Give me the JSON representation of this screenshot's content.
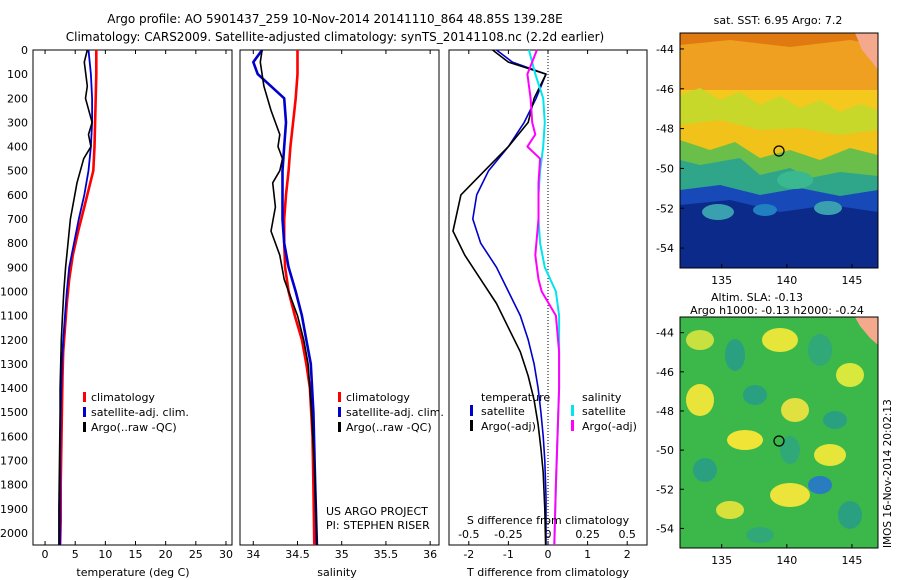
{
  "header": {
    "line1": "Argo profile: AO 5901437_259 10-Nov-2014 20141110_864 48.85S 139.28E",
    "line2": "Climatology: CARS2009. Satellite-adjusted climatology: synTS_20141108.nc (2.2d earlier)"
  },
  "colors": {
    "climatology": "#ff0000",
    "satellite": "#0000cc",
    "argo": "#000000",
    "satellite_salinity": "#00e5ee",
    "argo_salinity": "#ff00ff"
  },
  "depth_ticks": [
    "0",
    "100",
    "200",
    "300",
    "400",
    "500",
    "600",
    "700",
    "800",
    "900",
    "1000",
    "1100",
    "1200",
    "1300",
    "1400",
    "1500",
    "1600",
    "1700",
    "1800",
    "1900",
    "2000"
  ],
  "panels": {
    "temperature": {
      "xlabel": "temperature (deg C)",
      "xticks": [
        "0",
        "5",
        "10",
        "15",
        "20",
        "25",
        "30"
      ],
      "legend": [
        "climatology",
        "satellite-adj. clim.",
        "Argo(..raw -QC)"
      ]
    },
    "salinity": {
      "xlabel": "salinity",
      "xticks": [
        "34",
        "34.5",
        "35",
        "35.5",
        "36"
      ],
      "legend": [
        "climatology",
        "satellite-adj. clim.",
        "Argo(..raw -QC)"
      ],
      "note1": "US ARGO PROJECT",
      "note2": "PI: STEPHEN RISER"
    },
    "difference": {
      "xlabel": "T difference from climatology",
      "xticks": [
        "-2",
        "-1",
        "0",
        "1",
        "2"
      ],
      "top_label": "S difference from climatology",
      "s_ticks": [
        "-0.5",
        "-0.25",
        "0",
        "0.25",
        "0.5"
      ],
      "legend_t_title": "temperature",
      "legend_s_title": "salinity",
      "legend_t": [
        "satellite",
        "Argo(-adj)"
      ],
      "legend_s": [
        "satellite",
        "Argo(-adj)"
      ]
    },
    "map_sst": {
      "title": "sat. SST: 6.95 Argo: 7.2",
      "yticks": [
        "-44",
        "-46",
        "-48",
        "-50",
        "-52",
        "-54"
      ],
      "xticks": [
        "135",
        "140",
        "145"
      ]
    },
    "map_sla": {
      "title1": "Altim. SLA: -0.13",
      "title2": "Argo h1000: -0.13 h2000: -0.24",
      "yticks": [
        "-44",
        "-46",
        "-48",
        "-50",
        "-52",
        "-54"
      ],
      "xticks": [
        "135",
        "140",
        "145"
      ],
      "stamp": "IMOS 16-Nov-2014 20:02:13"
    }
  },
  "chart_data": [
    {
      "type": "line",
      "xlabel": "temperature (deg C)",
      "ylim": [
        2050,
        0
      ],
      "xlim": [
        -2,
        31
      ],
      "series": [
        {
          "name": "climatology",
          "x": [
            8.5,
            8.5,
            8.4,
            8.3,
            8.2,
            8.0,
            7.5,
            6.5,
            5.5,
            4.6,
            4.0,
            3.6,
            3.3,
            3.0,
            2.9,
            2.8,
            2.7,
            2.6,
            2.6,
            2.5
          ],
          "y": [
            0,
            100,
            200,
            300,
            400,
            500,
            550,
            650,
            750,
            850,
            950,
            1050,
            1150,
            1250,
            1350,
            1500,
            1650,
            1800,
            1950,
            2050
          ]
        },
        {
          "name": "satellite-adj. clim.",
          "x": [
            7.2,
            7.6,
            7.8,
            7.8,
            7.6,
            7.2,
            6.5,
            5.6,
            4.8,
            4.0,
            3.6,
            3.3,
            3.0,
            2.8,
            2.7,
            2.6,
            2.5,
            2.5,
            2.5
          ],
          "y": [
            0,
            100,
            200,
            300,
            400,
            500,
            600,
            700,
            800,
            900,
            1000,
            1100,
            1200,
            1300,
            1400,
            1500,
            1700,
            1900,
            2050
          ]
        },
        {
          "name": "Argo(..raw -QC)",
          "x": [
            7.0,
            6.5,
            7.0,
            6.7,
            7.8,
            7.2,
            7.6,
            6.4,
            5.3,
            4.2,
            3.8,
            3.4,
            3.1,
            2.9,
            2.7,
            2.6,
            2.5,
            2.5,
            2.4,
            2.3,
            2.3
          ],
          "y": [
            0,
            50,
            150,
            200,
            300,
            350,
            400,
            450,
            550,
            700,
            800,
            900,
            1000,
            1100,
            1200,
            1300,
            1400,
            1500,
            1700,
            1900,
            2050
          ]
        }
      ]
    },
    {
      "type": "line",
      "xlabel": "salinity",
      "ylim": [
        2050,
        0
      ],
      "xlim": [
        33.85,
        36.1
      ],
      "series": [
        {
          "name": "climatology",
          "x": [
            34.5,
            34.5,
            34.48,
            34.45,
            34.42,
            34.4,
            34.37,
            34.35,
            34.35,
            34.36,
            34.4,
            34.47,
            34.55,
            34.6,
            34.64,
            34.67,
            34.68,
            34.69
          ],
          "y": [
            0,
            100,
            200,
            300,
            400,
            500,
            600,
            700,
            800,
            900,
            1000,
            1100,
            1200,
            1300,
            1400,
            1600,
            1800,
            2050
          ]
        },
        {
          "name": "satellite-adj. clim.",
          "x": [
            34.1,
            34.0,
            34.05,
            34.35,
            34.37,
            34.35,
            34.33,
            34.33,
            34.33,
            34.35,
            34.4,
            34.48,
            34.55,
            34.6,
            34.65,
            34.68,
            34.7,
            34.72
          ],
          "y": [
            0,
            50,
            100,
            200,
            300,
            400,
            500,
            600,
            700,
            800,
            900,
            1000,
            1100,
            1200,
            1300,
            1500,
            1800,
            2050
          ]
        },
        {
          "name": "Argo(..raw -QC)",
          "x": [
            34.1,
            34.08,
            34.12,
            34.2,
            34.3,
            34.28,
            34.33,
            34.3,
            34.22,
            34.25,
            34.2,
            34.3,
            34.35,
            34.4,
            34.5,
            34.57,
            34.62,
            34.66,
            34.7,
            34.72
          ],
          "y": [
            0,
            50,
            150,
            250,
            350,
            400,
            450,
            500,
            550,
            650,
            750,
            850,
            950,
            1000,
            1100,
            1200,
            1300,
            1500,
            1800,
            2050
          ]
        }
      ]
    },
    {
      "type": "line",
      "xlabel": "T difference from climatology",
      "top_label": "S difference from climatology",
      "ylim": [
        2050,
        0
      ],
      "xlim": [
        -2.5,
        2.5
      ],
      "s_xlim": [
        -0.625,
        0.625
      ],
      "series": [
        {
          "name": "temperature satellite",
          "x": [
            -1.3,
            -0.9,
            -0.05,
            -0.3,
            -0.6,
            -1.0,
            -1.5,
            -1.8,
            -1.9,
            -1.7,
            -1.3,
            -1.0,
            -0.7,
            -0.5,
            -0.35,
            -0.25,
            -0.18,
            -0.12,
            -0.08,
            -0.05,
            -0.05
          ],
          "y": [
            0,
            50,
            100,
            200,
            300,
            400,
            500,
            600,
            700,
            800,
            900,
            1000,
            1100,
            1200,
            1300,
            1400,
            1500,
            1600,
            1700,
            1850,
            2050
          ]
        },
        {
          "name": "temperature Argo(-adj)",
          "x": [
            -1.4,
            -1.0,
            -0.05,
            -0.35,
            -0.5,
            -1.0,
            -1.6,
            -2.2,
            -2.4,
            -2.1,
            -1.7,
            -1.3,
            -1.0,
            -0.7,
            -0.5,
            -0.35,
            -0.25,
            -0.18,
            -0.12,
            -0.08,
            -0.06
          ],
          "y": [
            0,
            50,
            100,
            200,
            300,
            400,
            500,
            600,
            750,
            850,
            950,
            1050,
            1150,
            1250,
            1350,
            1450,
            1550,
            1650,
            1750,
            1900,
            2050
          ]
        },
        {
          "name": "salinity satellite",
          "x": [
            -0.12,
            -0.08,
            -0.03,
            -0.02,
            -0.03,
            -0.05,
            -0.06,
            -0.06,
            -0.05,
            -0.02,
            0.05,
            0.07,
            0.07,
            0.07,
            0.06,
            0.05,
            0.04
          ],
          "y": [
            0,
            100,
            200,
            300,
            400,
            500,
            600,
            700,
            800,
            900,
            1000,
            1100,
            1200,
            1400,
            1600,
            1800,
            2050
          ]
        },
        {
          "name": "salinity Argo(-adj)",
          "x": [
            -0.07,
            -0.13,
            -0.11,
            -0.1,
            -0.08,
            -0.13,
            -0.05,
            -0.06,
            -0.06,
            -0.08,
            -0.06,
            -0.04,
            0.05,
            0.07,
            0.07,
            0.06,
            0.05,
            0.04
          ],
          "y": [
            0,
            100,
            200,
            300,
            350,
            400,
            450,
            550,
            700,
            850,
            950,
            1000,
            1100,
            1250,
            1400,
            1600,
            1800,
            2050
          ]
        }
      ]
    }
  ]
}
